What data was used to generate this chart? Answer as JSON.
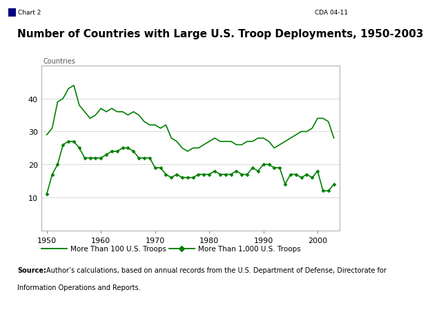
{
  "title": "Number of Countries with Large U.S. Troop Deployments, 1950-2003",
  "header_left": "Chart 2",
  "header_right": "CDA 04-11",
  "ylabel": "Countries",
  "line_color": "#008000",
  "years": [
    1950,
    1951,
    1952,
    1953,
    1954,
    1955,
    1956,
    1957,
    1958,
    1959,
    1960,
    1961,
    1962,
    1963,
    1964,
    1965,
    1966,
    1967,
    1968,
    1969,
    1970,
    1971,
    1972,
    1973,
    1974,
    1975,
    1976,
    1977,
    1978,
    1979,
    1980,
    1981,
    1982,
    1983,
    1984,
    1985,
    1986,
    1987,
    1988,
    1989,
    1990,
    1991,
    1992,
    1993,
    1994,
    1995,
    1996,
    1997,
    1998,
    1999,
    2000,
    2001,
    2002,
    2003
  ],
  "line100": [
    29,
    31,
    39,
    40,
    43,
    44,
    38,
    36,
    34,
    35,
    37,
    36,
    37,
    36,
    36,
    35,
    36,
    35,
    33,
    32,
    32,
    31,
    32,
    28,
    27,
    25,
    24,
    25,
    25,
    26,
    27,
    28,
    27,
    27,
    27,
    26,
    26,
    27,
    27,
    28,
    28,
    27,
    25,
    26,
    27,
    28,
    29,
    30,
    30,
    31,
    34,
    34,
    33,
    28
  ],
  "line1000": [
    11,
    17,
    20,
    26,
    27,
    27,
    25,
    22,
    22,
    22,
    22,
    23,
    24,
    24,
    25,
    25,
    24,
    22,
    22,
    22,
    19,
    19,
    17,
    16,
    17,
    16,
    16,
    16,
    17,
    17,
    17,
    18,
    17,
    17,
    17,
    18,
    17,
    17,
    19,
    18,
    20,
    20,
    19,
    19,
    14,
    17,
    17,
    16,
    17,
    16,
    18,
    12,
    12,
    14
  ],
  "legend": [
    "More Than 100 U.S. Troops",
    "More Than 1,000 U.S. Troops"
  ],
  "xlim": [
    1949,
    2004
  ],
  "ylim": [
    0,
    50
  ],
  "yticks": [
    10,
    20,
    30,
    40
  ],
  "xticks": [
    1950,
    1960,
    1970,
    1980,
    1990,
    2000
  ],
  "bg_color": "#ffffff",
  "plot_bg": "#ffffff",
  "header_bg": "#d4d0c8",
  "header_border": "#808080"
}
